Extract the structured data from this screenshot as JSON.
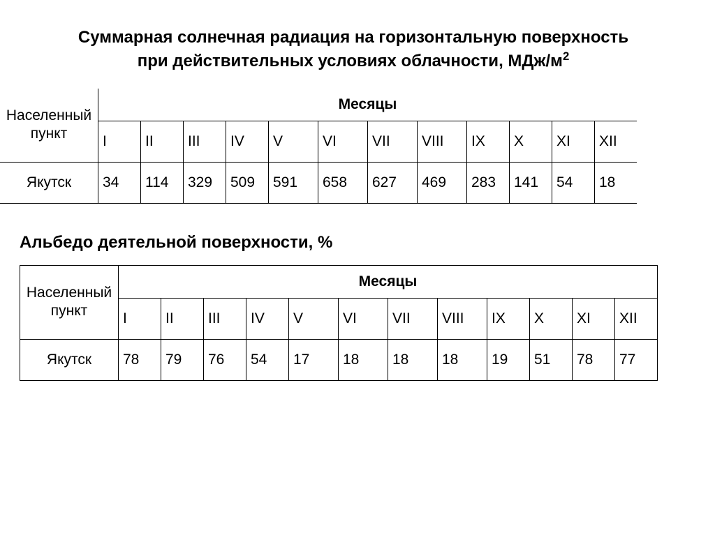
{
  "title_line1": "Суммарная солнечная радиация на горизонтальную поверхность",
  "title_line2_pre": "при действительных условиях облачности, МДж/м",
  "title_line2_sup": "2",
  "rowhead_line1": "Населенный",
  "rowhead_line2": "пункт",
  "months_label": "Месяцы",
  "months": [
    "I",
    "II",
    "III",
    "IV",
    "V",
    "VI",
    "VII",
    "VIII",
    "IX",
    "X",
    "XI",
    "XII"
  ],
  "table1": {
    "row_label": "Якутск",
    "values": [
      "34",
      "114",
      "329",
      "509",
      "591",
      "658",
      "627",
      "469",
      "283",
      "141",
      "54",
      "18"
    ]
  },
  "subtitle2": "Альбедо деятельной поверхности, %",
  "table2": {
    "row_label": "Якутск",
    "values": [
      "78",
      "79",
      "76",
      "54",
      "17",
      "18",
      "18",
      "18",
      "19",
      "51",
      "78",
      "77"
    ]
  },
  "col_widths": [
    "56",
    "56",
    "60",
    "60",
    "64",
    "64",
    "64",
    "68",
    "60",
    "60",
    "60",
    "60"
  ]
}
